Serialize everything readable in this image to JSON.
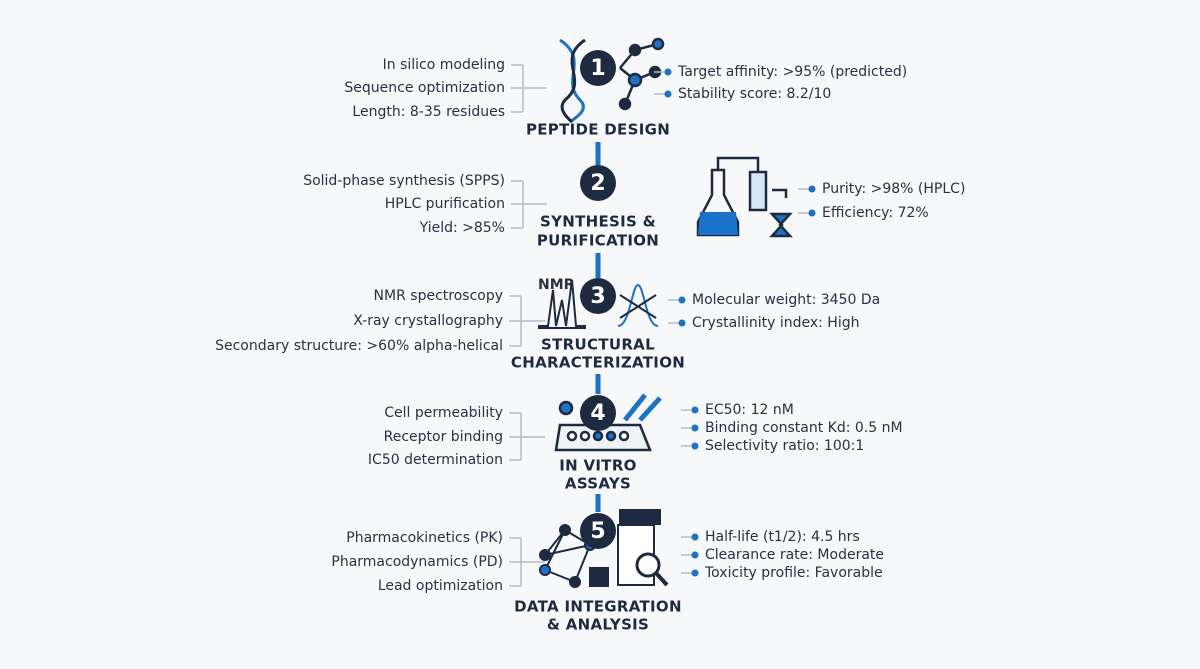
{
  "steps": [
    {
      "number": "1",
      "title": [
        "PEPTIDE DESIGN"
      ],
      "left": [
        "In silico modeling",
        "Sequence optimization",
        "Length: 8-35 residues"
      ],
      "right": [
        "Target affinity: >95% (predicted)",
        "Stability score: 8.2/10"
      ]
    },
    {
      "number": "2",
      "title": [
        "SYNTHESIS &",
        "PURIFICATION"
      ],
      "left": [
        "Solid-phase synthesis (SPPS)",
        "HPLC purification",
        "Yield: >85%"
      ],
      "right": [
        "Purity: >98% (HPLC)",
        "Efficiency: 72%"
      ]
    },
    {
      "number": "3",
      "title": [
        "STRUCTURAL",
        "CHARACTERIZATION"
      ],
      "left": [
        "NMR spectroscopy",
        "X-ray crystallography",
        "Secondary structure: >60% alpha-helical"
      ],
      "right": [
        "Molecular weight: 3450 Da",
        "Crystallinity index: High"
      ],
      "icon_label": "NMR"
    },
    {
      "number": "4",
      "title": [
        "IN VITRO",
        "ASSAYS"
      ],
      "left": [
        "Cell permeability",
        "Receptor binding",
        "IC50 determination"
      ],
      "right": [
        "EC50: 12 nM",
        "Binding constant Kd: 0.5 nM",
        "Selectivity ratio: 100:1"
      ]
    },
    {
      "number": "5",
      "title": [
        "DATA INTEGRATION",
        "& ANALYSIS"
      ],
      "left": [
        "Pharmacokinetics (PK)",
        "Pharmacodynamics (PD)",
        "Lead optimization"
      ],
      "right": [
        "Half-life (t1/2): 4.5 hrs",
        "Clearance rate: Moderate",
        "Toxicity profile: Favorable"
      ]
    }
  ]
}
